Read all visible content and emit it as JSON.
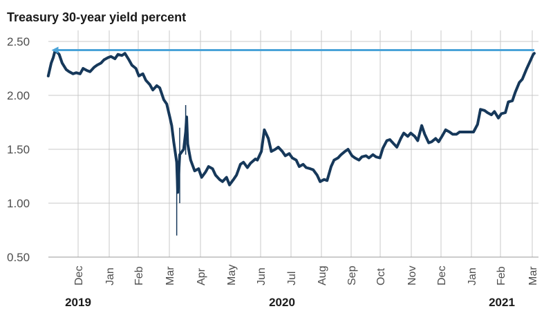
{
  "chart_data": {
    "type": "line",
    "title": "Treasury 30-year yield percent",
    "xlabel": "",
    "ylabel": "",
    "ylim": [
      0.5,
      2.5
    ],
    "y_ticks": [
      "0.50",
      "1.00",
      "1.50",
      "2.00",
      "2.50"
    ],
    "x_ticks": [
      "Dec",
      "Jan",
      "Feb",
      "Mar",
      "Apr",
      "May",
      "Jun",
      "Jul",
      "Aug",
      "Sep",
      "Oct",
      "Nov",
      "Dec",
      "Jan",
      "Feb",
      "Mar"
    ],
    "years": [
      "2019",
      "2020",
      "2021"
    ],
    "grid": true,
    "series": [
      {
        "color": "#16385a",
        "x": [
          "2019-11-01",
          "2019-11-04",
          "2019-11-06",
          "2019-11-08",
          "2019-11-12",
          "2019-11-15",
          "2019-11-19",
          "2019-11-22",
          "2019-11-26",
          "2019-11-29",
          "2019-12-03",
          "2019-12-06",
          "2019-12-10",
          "2019-12-13",
          "2019-12-17",
          "2019-12-20",
          "2019-12-24",
          "2019-12-27",
          "2019-12-31",
          "2020-01-03",
          "2020-01-07",
          "2020-01-10",
          "2020-01-14",
          "2020-01-17",
          "2020-01-21",
          "2020-01-24",
          "2020-01-28",
          "2020-01-31",
          "2020-02-04",
          "2020-02-07",
          "2020-02-11",
          "2020-02-14",
          "2020-02-18",
          "2020-02-21",
          "2020-02-25",
          "2020-02-28",
          "2020-03-02",
          "2020-03-04",
          "2020-03-06",
          "2020-03-09",
          "2020-03-10",
          "2020-03-12",
          "2020-03-16",
          "2020-03-18",
          "2020-03-19",
          "2020-03-20",
          "2020-03-23",
          "2020-03-25",
          "2020-03-27",
          "2020-03-31",
          "2020-04-03",
          "2020-04-07",
          "2020-04-10",
          "2020-04-14",
          "2020-04-17",
          "2020-04-21",
          "2020-04-24",
          "2020-04-28",
          "2020-05-01",
          "2020-05-05",
          "2020-05-08",
          "2020-05-12",
          "2020-05-15",
          "2020-05-19",
          "2020-05-22",
          "2020-05-27",
          "2020-05-29",
          "2020-06-02",
          "2020-06-05",
          "2020-06-09",
          "2020-06-12",
          "2020-06-16",
          "2020-06-19",
          "2020-06-23",
          "2020-06-26",
          "2020-06-30",
          "2020-07-03",
          "2020-07-07",
          "2020-07-10",
          "2020-07-14",
          "2020-07-17",
          "2020-07-21",
          "2020-07-24",
          "2020-07-28",
          "2020-07-31",
          "2020-08-04",
          "2020-08-07",
          "2020-08-11",
          "2020-08-14",
          "2020-08-18",
          "2020-08-21",
          "2020-08-25",
          "2020-08-28",
          "2020-09-01",
          "2020-09-04",
          "2020-09-08",
          "2020-09-11",
          "2020-09-15",
          "2020-09-18",
          "2020-09-22",
          "2020-09-25",
          "2020-09-29",
          "2020-10-02",
          "2020-10-06",
          "2020-10-09",
          "2020-10-13",
          "2020-10-16",
          "2020-10-20",
          "2020-10-23",
          "2020-10-27",
          "2020-10-30",
          "2020-11-03",
          "2020-11-06",
          "2020-11-10",
          "2020-11-13",
          "2020-11-17",
          "2020-11-20",
          "2020-11-24",
          "2020-11-27",
          "2020-12-01",
          "2020-12-04",
          "2020-12-08",
          "2020-12-11",
          "2020-12-15",
          "2020-12-18",
          "2020-12-22",
          "2020-12-25",
          "2020-12-29",
          "2021-01-01",
          "2021-01-05",
          "2021-01-08",
          "2021-01-12",
          "2021-01-15",
          "2021-01-19",
          "2021-01-22",
          "2021-01-26",
          "2021-01-29",
          "2021-02-02",
          "2021-02-05",
          "2021-02-09",
          "2021-02-12",
          "2021-02-16",
          "2021-02-19",
          "2021-02-23",
          "2021-02-26",
          "2021-03-02",
          "2021-03-03"
        ],
        "values": [
          2.18,
          2.3,
          2.35,
          2.42,
          2.38,
          2.3,
          2.24,
          2.22,
          2.2,
          2.21,
          2.2,
          2.25,
          2.23,
          2.22,
          2.26,
          2.28,
          2.3,
          2.33,
          2.35,
          2.36,
          2.34,
          2.38,
          2.37,
          2.39,
          2.33,
          2.28,
          2.25,
          2.18,
          2.2,
          2.14,
          2.1,
          2.05,
          2.09,
          2.07,
          1.96,
          1.92,
          1.8,
          1.72,
          1.57,
          1.38,
          1.1,
          1.45,
          1.5,
          1.66,
          1.8,
          1.55,
          1.4,
          1.35,
          1.3,
          1.32,
          1.24,
          1.29,
          1.34,
          1.32,
          1.26,
          1.22,
          1.2,
          1.24,
          1.17,
          1.22,
          1.26,
          1.36,
          1.38,
          1.33,
          1.37,
          1.41,
          1.4,
          1.48,
          1.68,
          1.6,
          1.48,
          1.5,
          1.52,
          1.48,
          1.44,
          1.46,
          1.42,
          1.4,
          1.34,
          1.36,
          1.33,
          1.32,
          1.31,
          1.26,
          1.2,
          1.22,
          1.21,
          1.34,
          1.4,
          1.42,
          1.45,
          1.48,
          1.5,
          1.44,
          1.42,
          1.4,
          1.43,
          1.44,
          1.42,
          1.45,
          1.43,
          1.42,
          1.51,
          1.58,
          1.59,
          1.55,
          1.52,
          1.6,
          1.65,
          1.62,
          1.65,
          1.62,
          1.58,
          1.72,
          1.64,
          1.56,
          1.57,
          1.6,
          1.57,
          1.63,
          1.68,
          1.66,
          1.64,
          1.64,
          1.66,
          1.66,
          1.66,
          1.66,
          1.66,
          1.73,
          1.87,
          1.86,
          1.84,
          1.82,
          1.85,
          1.79,
          1.83,
          1.84,
          1.94,
          1.95,
          2.03,
          2.12,
          2.15,
          2.24,
          2.3,
          2.38,
          2.39
        ]
      }
    ],
    "annotation": {
      "type": "arrow",
      "from_x": "2021-03-03",
      "to_x": "2019-11-05",
      "y": 2.42,
      "color": "#4aa3d8"
    }
  }
}
